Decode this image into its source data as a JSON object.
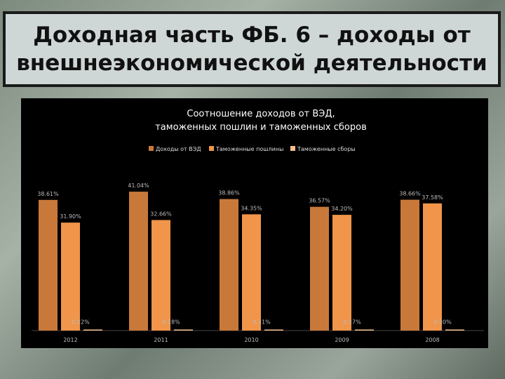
{
  "slide": {
    "title": "Доходная часть ФБ. 6 – доходы от внешнеэкономической деятельности"
  },
  "colors": {
    "series": [
      "#c8793a",
      "#f0954a",
      "#f4c08e"
    ],
    "background": "#000000",
    "text": "#ffffff",
    "label": "#bbbbbb"
  },
  "chart_data": {
    "type": "bar",
    "title_lines": [
      "Соотношение доходов от ВЭД,",
      "таможенных пошлин и таможенных сборов"
    ],
    "categories": [
      "2012",
      "2011",
      "2010",
      "2009",
      "2008"
    ],
    "series": [
      {
        "name": "Доходы от ВЭД",
        "values": [
          38.61,
          41.04,
          38.86,
          36.57,
          38.66
        ],
        "labels": [
          "38.61%",
          "41.04%",
          "38.86%",
          "36.57%",
          "38.66%"
        ]
      },
      {
        "name": "Таможенные пошлины",
        "values": [
          31.9,
          32.66,
          34.35,
          34.2,
          37.58
        ],
        "labels": [
          "31.90%",
          "32.66%",
          "34.35%",
          "34.20%",
          "37.58%"
        ]
      },
      {
        "name": "Таможенные сборы",
        "values": [
          0.22,
          0.28,
          0.31,
          0.27,
          0.3
        ],
        "labels": [
          "0.22%",
          "0.28%",
          "0.31%",
          "0.27%",
          "0.30%"
        ]
      }
    ],
    "ylim": [
      0,
      45
    ],
    "legend_position": "top",
    "grid": false
  }
}
